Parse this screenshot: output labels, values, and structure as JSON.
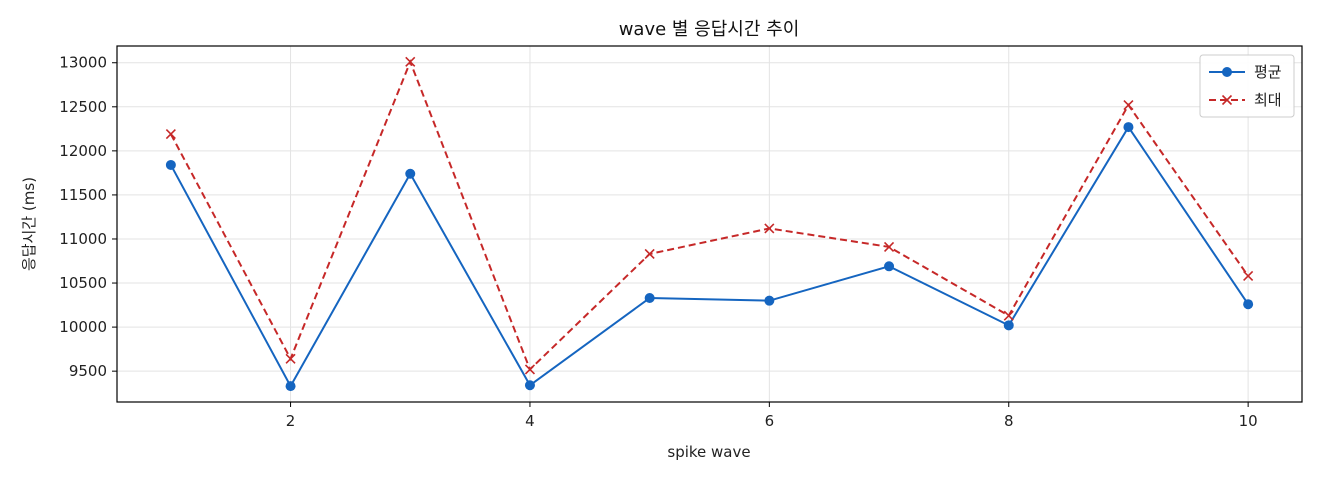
{
  "chart_data": {
    "type": "line",
    "title": "wave 별 응답시간 추이",
    "xlabel": "spike wave",
    "ylabel": "응답시간 (ms)",
    "x": [
      1,
      2,
      3,
      4,
      5,
      6,
      7,
      8,
      9,
      10
    ],
    "xticks": [
      2,
      4,
      6,
      8,
      10
    ],
    "yticks": [
      9500,
      10000,
      10500,
      11000,
      11500,
      12000,
      12500,
      13000
    ],
    "xlim": [
      0.55,
      10.45
    ],
    "ylim": [
      9150,
      13190
    ],
    "grid": true,
    "legend_position": "top-right",
    "series": [
      {
        "name": "평균",
        "color": "#1565c0",
        "marker": "circle",
        "line_style": "solid",
        "values": [
          11840,
          9330,
          11740,
          9340,
          10330,
          10300,
          10690,
          10020,
          12270,
          10260
        ]
      },
      {
        "name": "최대",
        "color": "#c62828",
        "marker": "x",
        "line_style": "dashed",
        "values": [
          12190,
          9640,
          13010,
          9520,
          10830,
          11120,
          10910,
          10130,
          12520,
          10580
        ]
      }
    ]
  }
}
